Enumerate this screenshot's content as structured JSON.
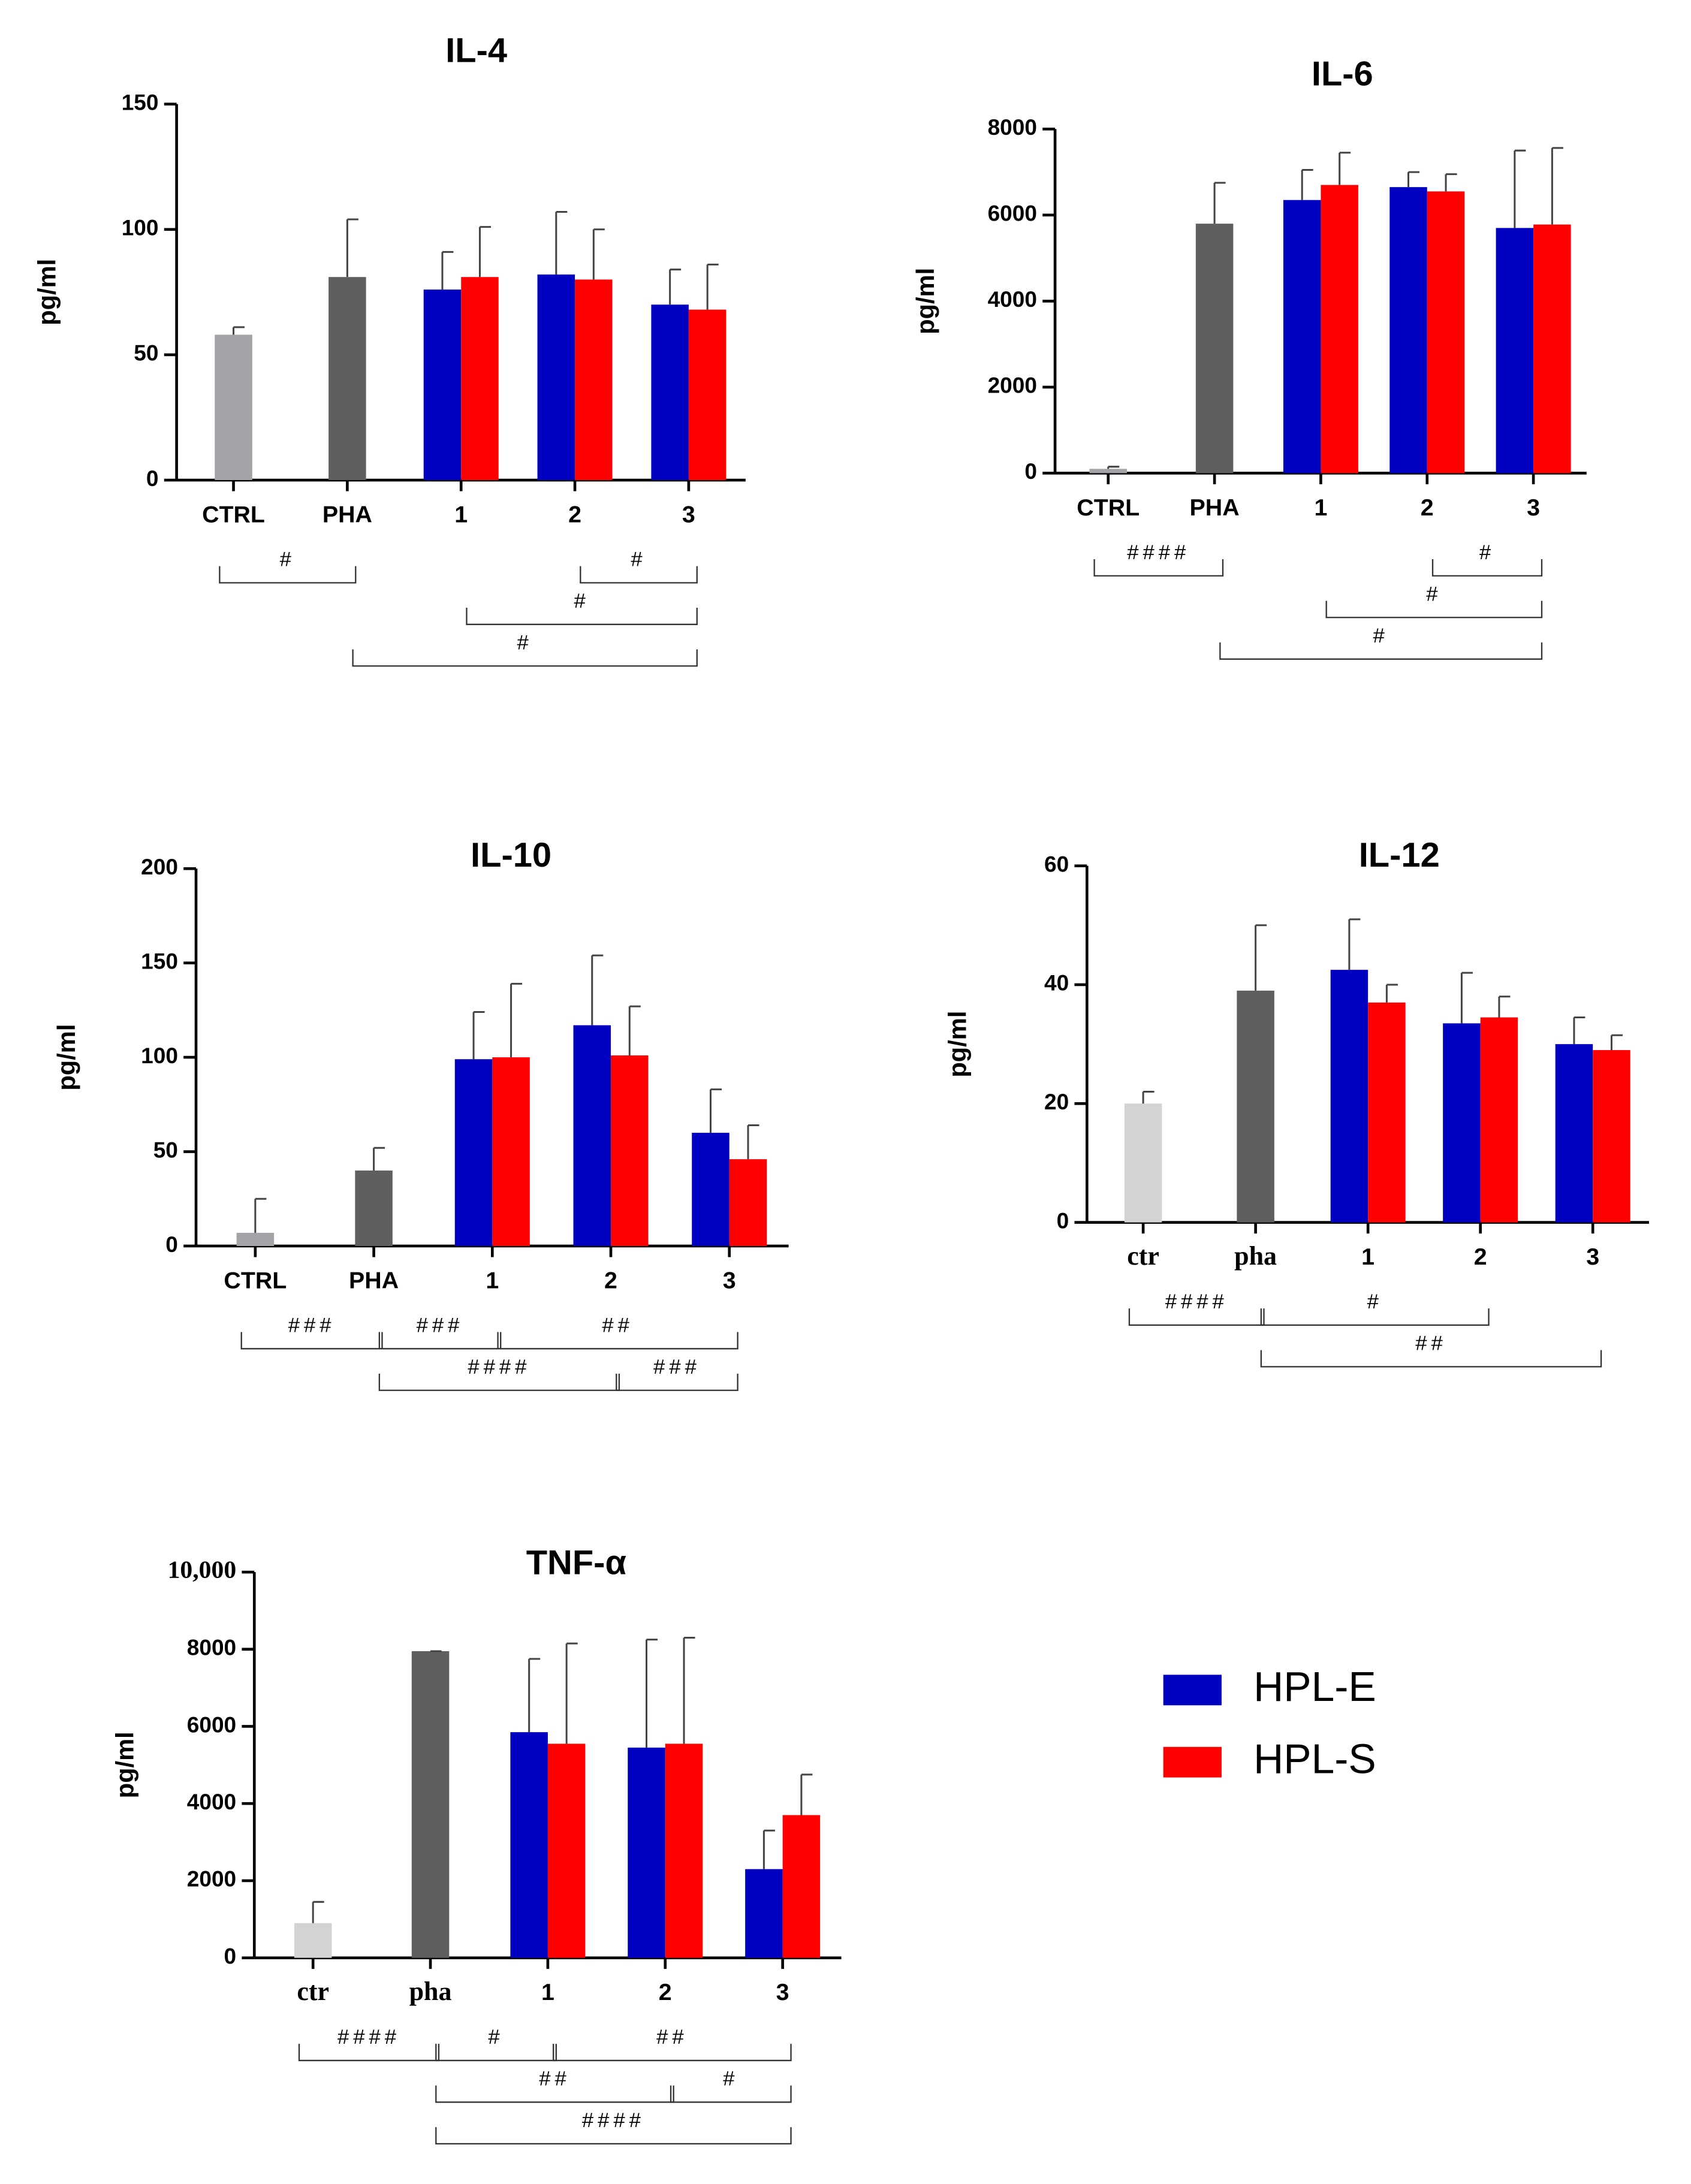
{
  "chart_data": [
    {
      "type": "bar",
      "title": "IL-4",
      "ylabel": "pg/ml",
      "categories": [
        "CTRL",
        "PHA",
        "1",
        "2",
        "3"
      ],
      "ylim": [
        0,
        150
      ],
      "yticks": [
        0,
        50,
        100,
        150
      ],
      "control": {
        "values": [
          58,
          81,
          null,
          null,
          null
        ],
        "errors": [
          3,
          23,
          null,
          null,
          null
        ],
        "colors": [
          "#a3a3a8",
          "#5f5f5f",
          null,
          null,
          null
        ]
      },
      "series": [
        {
          "values": [
            null,
            null,
            76,
            82,
            70
          ],
          "errors": [
            null,
            null,
            15,
            25,
            14
          ]
        },
        {
          "values": [
            null,
            null,
            81,
            80,
            68
          ],
          "errors": [
            null,
            null,
            20,
            20,
            18
          ]
        }
      ],
      "significance": [
        {
          "label": "#",
          "from": 0,
          "to": 1
        },
        {
          "label": "#",
          "from": 3,
          "to": 4
        },
        {
          "label": "#",
          "from": 2,
          "to": 4
        },
        {
          "label": "#",
          "from": 1,
          "to": 4
        }
      ]
    },
    {
      "type": "bar",
      "title": "IL-6",
      "ylabel": "pg/ml",
      "categories": [
        "CTRL",
        "PHA",
        "1",
        "2",
        "3"
      ],
      "ylim": [
        0,
        8000
      ],
      "yticks": [
        0,
        2000,
        4000,
        6000,
        8000
      ],
      "control": {
        "values": [
          100,
          5800,
          null,
          null,
          null
        ],
        "errors": [
          50,
          950,
          null,
          null,
          null
        ],
        "colors": [
          "#a3a3a8",
          "#5f5f5f",
          null,
          null,
          null
        ]
      },
      "series": [
        {
          "values": [
            null,
            null,
            6350,
            6650,
            5700
          ],
          "errors": [
            null,
            null,
            700,
            350,
            1800
          ]
        },
        {
          "values": [
            null,
            null,
            6700,
            6550,
            5780
          ],
          "errors": [
            null,
            null,
            750,
            400,
            1780
          ]
        }
      ],
      "significance": [
        {
          "label": "####",
          "from": 0,
          "to": 1
        },
        {
          "label": "#",
          "from": 3,
          "to": 4
        },
        {
          "label": "#",
          "from": 2,
          "to": 4
        },
        {
          "label": "#",
          "from": 1,
          "to": 4
        }
      ]
    },
    {
      "type": "bar",
      "title": "IL-10",
      "ylabel": "pg/ml",
      "categories": [
        "CTRL",
        "PHA",
        "1",
        "2",
        "3"
      ],
      "ylim": [
        0,
        200
      ],
      "yticks": [
        0,
        50,
        100,
        150,
        200
      ],
      "control": {
        "values": [
          7,
          40,
          null,
          null,
          null
        ],
        "errors": [
          18,
          12,
          null,
          null,
          null
        ],
        "colors": [
          "#a3a3a8",
          "#5f5f5f",
          null,
          null,
          null
        ]
      },
      "series": [
        {
          "values": [
            null,
            null,
            99,
            117,
            60
          ],
          "errors": [
            null,
            null,
            25,
            37,
            23
          ]
        },
        {
          "values": [
            null,
            null,
            100,
            101,
            46
          ],
          "errors": [
            null,
            null,
            39,
            26,
            18
          ]
        }
      ],
      "significance": [
        {
          "label": "###",
          "from": 0,
          "to": 1
        },
        {
          "label": "###",
          "from": 1,
          "to": 2
        },
        {
          "label": "##",
          "from": 2,
          "to": 4
        },
        {
          "label": "####",
          "from": 1,
          "to": 3
        },
        {
          "label": "###",
          "from": 3,
          "to": 4
        }
      ]
    },
    {
      "type": "bar",
      "title": "IL-12",
      "ylabel": "pg/ml",
      "categories": [
        "ctr",
        "pha",
        "1",
        "2",
        "3"
      ],
      "ylim": [
        0,
        60
      ],
      "yticks": [
        0,
        20,
        40,
        60
      ],
      "control": {
        "values": [
          20,
          39,
          null,
          null,
          null
        ],
        "errors": [
          2,
          11,
          null,
          null,
          null
        ],
        "colors": [
          "#d3d3d3",
          "#5f5f5f",
          null,
          null,
          null
        ]
      },
      "series": [
        {
          "values": [
            null,
            null,
            42.5,
            33.5,
            30
          ],
          "errors": [
            null,
            null,
            8.5,
            8.5,
            4.5
          ]
        },
        {
          "values": [
            null,
            null,
            37,
            34.5,
            29
          ],
          "errors": [
            null,
            null,
            3,
            3.5,
            2.5
          ]
        }
      ],
      "significance": [
        {
          "label": "####",
          "from": 0,
          "to": 1
        },
        {
          "label": "#",
          "from": 1,
          "to": 3
        },
        {
          "label": "##",
          "from": 1,
          "to": 4
        }
      ]
    },
    {
      "type": "bar",
      "title": "TNF-α",
      "ylabel": "pg/ml",
      "categories": [
        "ctr",
        "pha",
        "1",
        "2",
        "3"
      ],
      "ylim": [
        0,
        10000
      ],
      "yticks": [
        0,
        2000,
        4000,
        6000,
        8000,
        {
          "value": 10000,
          "label": "10,000"
        }
      ],
      "control": {
        "values": [
          900,
          7950,
          null,
          null,
          null
        ],
        "errors": [
          550,
          0,
          null,
          null,
          null
        ],
        "colors": [
          "#d3d3d3",
          "#5f5f5f",
          null,
          null,
          null
        ]
      },
      "series": [
        {
          "values": [
            null,
            null,
            5850,
            5450,
            2300
          ],
          "errors": [
            null,
            null,
            1900,
            2800,
            1000
          ]
        },
        {
          "values": [
            null,
            null,
            5550,
            5550,
            3700
          ],
          "errors": [
            null,
            null,
            2600,
            2750,
            1050
          ]
        }
      ],
      "significance": [
        {
          "label": "####",
          "from": 0,
          "to": 1
        },
        {
          "label": "#",
          "from": 1,
          "to": 2
        },
        {
          "label": "##",
          "from": 2,
          "to": 4
        },
        {
          "label": "##",
          "from": 1,
          "to": 3
        },
        {
          "label": "#",
          "from": 3,
          "to": 4
        },
        {
          "label": "####",
          "from": 1,
          "to": 4
        }
      ]
    }
  ],
  "legend": [
    {
      "name": "HPL-E",
      "color": "#0000c0"
    },
    {
      "name": "HPL-S",
      "color": "#ff0000"
    }
  ]
}
